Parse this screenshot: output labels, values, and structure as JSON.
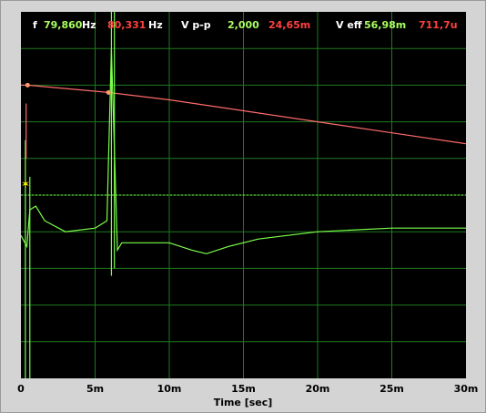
{
  "readouts": {
    "freq_label": "f",
    "freq_ch1": "79,860",
    "freq_unit1": "Hz",
    "freq_ch2": "80,331",
    "freq_unit2": "Hz",
    "vpp_label": "V p-p",
    "vpp_ch1": "2,000",
    "vpp_ch2": "24,65m",
    "veff_label": "V eff",
    "veff_ch1": "56,98m",
    "veff_ch2": "711,7u"
  },
  "colors": {
    "ch1": "#7cff4a",
    "ch2": "#ff6a6a",
    "grid": "#1f7a1f",
    "cursor": "#ffff00"
  },
  "chart_data": {
    "type": "line",
    "xlabel": "Time [sec]",
    "x_ticks": [
      "0",
      "5m",
      "10m",
      "15m",
      "20m",
      "25m",
      "30m"
    ],
    "xlim": [
      0,
      0.03
    ],
    "series": [
      {
        "color": "#ff6a6a",
        "x": [
          0,
          0.00045,
          0.0059,
          0.01,
          0.015,
          0.02,
          0.025,
          0.03
        ],
        "y": [
          0.8,
          0.8,
          0.78,
          0.76,
          0.73,
          0.7,
          0.67,
          0.64
        ]
      },
      {
        "color": "#7cff4a",
        "x": [
          0,
          0.0004,
          0.0006,
          0.001,
          0.0016,
          0.003,
          0.005,
          0.0058,
          0.0061,
          0.0065,
          0.0068,
          0.008,
          0.01,
          0.0115,
          0.0125,
          0.014,
          0.016,
          0.02,
          0.025,
          0.03
        ],
        "y": [
          0.39,
          0.36,
          0.46,
          0.47,
          0.43,
          0.4,
          0.41,
          0.43,
          0.9,
          0.35,
          0.37,
          0.37,
          0.37,
          0.35,
          0.34,
          0.36,
          0.38,
          0.4,
          0.41,
          0.41
        ]
      }
    ]
  }
}
